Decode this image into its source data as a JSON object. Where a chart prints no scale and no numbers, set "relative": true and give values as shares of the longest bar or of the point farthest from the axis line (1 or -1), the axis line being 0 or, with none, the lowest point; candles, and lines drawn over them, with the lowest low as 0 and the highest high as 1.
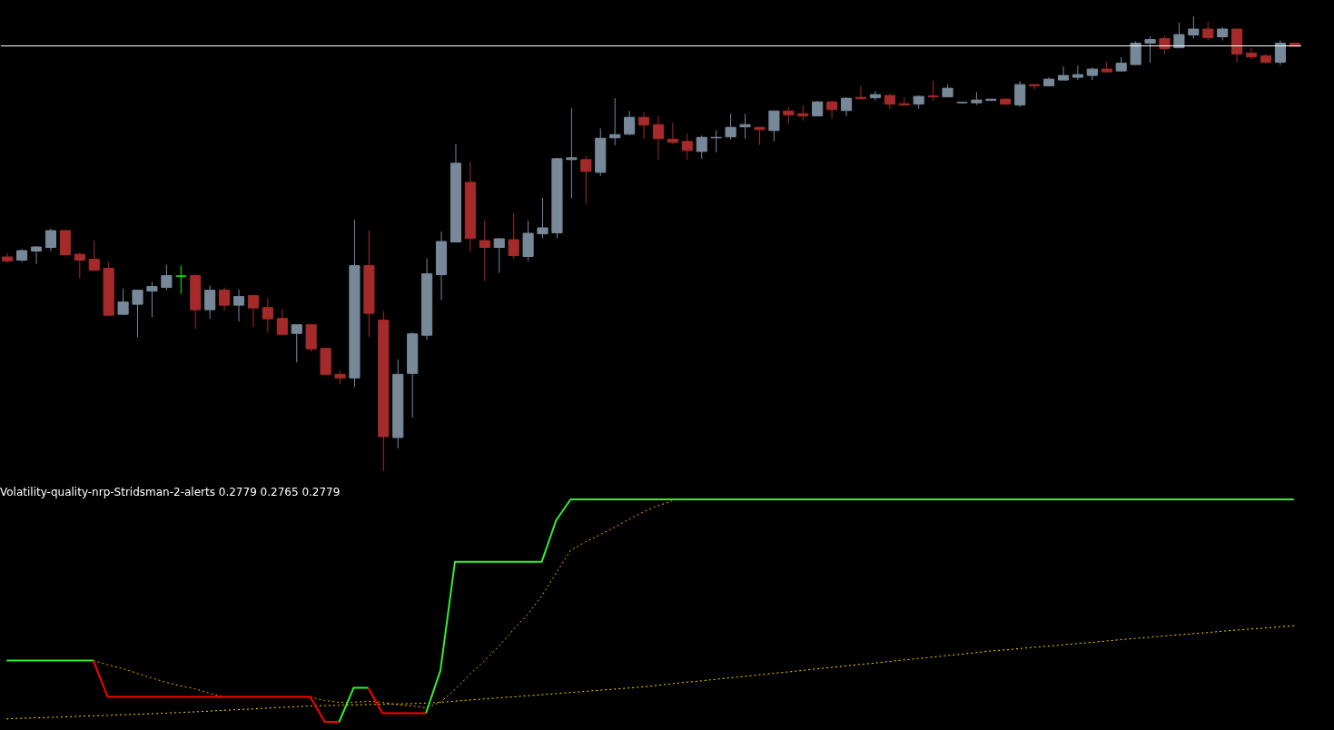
{
  "chart_data": [
    {
      "type": "candlestick",
      "relative": true,
      "tick_labels": false,
      "categories": [
        null,
        null,
        null,
        null,
        null,
        null,
        null,
        null,
        null,
        null,
        null,
        null,
        null,
        null,
        null,
        null,
        null,
        null,
        null,
        null,
        null,
        null,
        null,
        null,
        null,
        null,
        null,
        null,
        null,
        null,
        null,
        null,
        null,
        null,
        null,
        null,
        null,
        null,
        null,
        null,
        null,
        null,
        null,
        null,
        null,
        null,
        null,
        null,
        null,
        null,
        null,
        null,
        null,
        null,
        null,
        null,
        null,
        null,
        null,
        null,
        null,
        null,
        null,
        null,
        null,
        null,
        null,
        null,
        null,
        null,
        null,
        null,
        null,
        null,
        null,
        null,
        null,
        null,
        null,
        null,
        null,
        null,
        null,
        null,
        null,
        null,
        null,
        null,
        null,
        null
      ],
      "ohlc": [
        [
          0.471,
          0.479,
          0.458,
          0.462
        ],
        [
          0.464,
          0.488,
          0.46,
          0.485
        ],
        [
          0.484,
          0.495,
          0.456,
          0.493
        ],
        [
          0.492,
          0.533,
          0.484,
          0.529
        ],
        [
          0.529,
          0.531,
          0.472,
          0.476
        ],
        [
          0.477,
          0.48,
          0.424,
          0.464
        ],
        [
          0.466,
          0.507,
          0.442,
          0.442
        ],
        [
          0.446,
          0.459,
          0.343,
          0.343
        ],
        [
          0.345,
          0.402,
          0.343,
          0.372
        ],
        [
          0.367,
          0.398,
          0.295,
          0.398
        ],
        [
          0.396,
          0.416,
          0.339,
          0.406
        ],
        [
          0.404,
          0.454,
          0.398,
          0.43
        ],
        [
          0.429,
          0.452,
          0.39,
          0.429
        ],
        [
          0.43,
          0.434,
          0.313,
          0.355
        ],
        [
          0.355,
          0.408,
          0.335,
          0.398
        ],
        [
          0.398,
          0.404,
          0.353,
          0.365
        ],
        [
          0.365,
          0.4,
          0.329,
          0.384
        ],
        [
          0.386,
          0.388,
          0.317,
          0.359
        ],
        [
          0.36,
          0.38,
          0.305,
          0.335
        ],
        [
          0.336,
          0.356,
          0.297,
          0.301
        ],
        [
          0.303,
          0.322,
          0.239,
          0.322
        ],
        [
          0.322,
          0.322,
          0.263,
          0.269
        ],
        [
          0.27,
          0.27,
          0.211,
          0.213
        ],
        [
          0.213,
          0.221,
          0.191,
          0.205
        ],
        [
          0.205,
          0.553,
          0.185,
          0.452
        ],
        [
          0.452,
          0.529,
          0.295,
          0.347
        ],
        [
          0.332,
          0.352,
          0,
          0.076
        ],
        [
          0.074,
          0.246,
          0.05,
          0.213
        ],
        [
          0.215,
          0.306,
          0.118,
          0.302
        ],
        [
          0.299,
          0.468,
          0.289,
          0.434
        ],
        [
          0.432,
          0.527,
          0.376,
          0.505
        ],
        [
          0.504,
          0.719,
          0.504,
          0.677
        ],
        [
          0.635,
          0.681,
          0.482,
          0.512
        ],
        [
          0.507,
          0.551,
          0.418,
          0.492
        ],
        [
          0.492,
          0.513,
          0.436,
          0.511
        ],
        [
          0.509,
          0.567,
          0.468,
          0.474
        ],
        [
          0.472,
          0.551,
          0.462,
          0.523
        ],
        [
          0.522,
          0.601,
          0.512,
          0.535
        ],
        [
          0.524,
          0.689,
          0.512,
          0.687
        ],
        [
          0.685,
          0.798,
          0.6,
          0.689
        ],
        [
          0.685,
          0.693,
          0.588,
          0.659
        ],
        [
          0.657,
          0.754,
          0.649,
          0.732
        ],
        [
          0.733,
          0.82,
          0.717,
          0.74
        ],
        [
          0.741,
          0.792,
          0.739,
          0.778
        ],
        [
          0.778,
          0.79,
          0.731,
          0.761
        ],
        [
          0.762,
          0.78,
          0.685,
          0.731
        ],
        [
          0.73,
          0.766,
          0.719,
          0.723
        ],
        [
          0.725,
          0.742,
          0.685,
          0.705
        ],
        [
          0.703,
          0.738,
          0.687,
          0.734
        ],
        [
          0.733,
          0.75,
          0.701,
          0.734
        ],
        [
          0.735,
          0.786,
          0.729,
          0.756
        ],
        [
          0.757,
          0.786,
          0.731,
          0.762
        ],
        [
          0.756,
          0.756,
          0.717,
          0.751
        ],
        [
          0.749,
          0.792,
          0.725,
          0.792
        ],
        [
          0.792,
          0.8,
          0.763,
          0.783
        ],
        [
          0.786,
          0.804,
          0.771,
          0.781
        ],
        [
          0.781,
          0.814,
          0.781,
          0.812
        ],
        [
          0.812,
          0.814,
          0.775,
          0.795
        ],
        [
          0.793,
          0.822,
          0.781,
          0.82
        ],
        [
          0.822,
          0.848,
          0.819,
          0.819
        ],
        [
          0.821,
          0.836,
          0.815,
          0.828
        ],
        [
          0.826,
          0.83,
          0.797,
          0.807
        ],
        [
          0.808,
          0.822,
          0.805,
          0.805
        ],
        [
          0.807,
          0.826,
          0.797,
          0.824
        ],
        [
          0.825,
          0.858,
          0.815,
          0.823
        ],
        [
          0.823,
          0.85,
          0.823,
          0.842
        ],
        [
          0.81,
          0.811,
          0.808,
          0.811
        ],
        [
          0.81,
          0.834,
          0.805,
          0.816
        ],
        [
          0.815,
          0.818,
          0.814,
          0.818
        ],
        [
          0.818,
          0.82,
          0.807,
          0.807
        ],
        [
          0.805,
          0.858,
          0.801,
          0.85
        ],
        [
          0.85,
          0.85,
          0.839,
          0.847
        ],
        [
          0.847,
          0.866,
          0.847,
          0.862
        ],
        [
          0.86,
          0.89,
          0.86,
          0.87
        ],
        [
          0.866,
          0.892,
          0.86,
          0.872
        ],
        [
          0.87,
          0.888,
          0.86,
          0.884
        ],
        [
          0.884,
          0.9,
          0.876,
          0.878
        ],
        [
          0.88,
          0.91,
          0.878,
          0.897
        ],
        [
          0.894,
          0.945,
          0.894,
          0.941
        ],
        [
          0.941,
          0.956,
          0.898,
          0.949
        ],
        [
          0.951,
          0.958,
          0.917,
          0.929
        ],
        [
          0.931,
          0.986,
          0.929,
          0.96
        ],
        [
          0.959,
          1,
          0.951,
          0.972
        ],
        [
          0.972,
          0.988,
          0.947,
          0.953
        ],
        [
          0.955,
          0.976,
          0.947,
          0.972
        ],
        [
          0.972,
          0.972,
          0.899,
          0.917
        ],
        [
          0.919,
          0.93,
          0.905,
          0.911
        ],
        [
          0.913,
          0.917,
          0.896,
          0.899
        ],
        [
          0.899,
          0.947,
          0.893,
          0.941
        ],
        [
          0.941,
          0.941,
          0.934,
          0.934
        ]
      ],
      "colors": [
        "#a52a2a",
        "#778899",
        "#778899",
        "#778899",
        "#a52a2a",
        "#a52a2a",
        "#a52a2a",
        "#a52a2a",
        "#778899",
        "#778899",
        "#778899",
        "#778899",
        "#00ff00",
        "#a52a2a",
        "#778899",
        "#a52a2a",
        "#778899",
        "#a52a2a",
        "#a52a2a",
        "#a52a2a",
        "#778899",
        "#a52a2a",
        "#a52a2a",
        "#a52a2a",
        "#778899",
        "#a52a2a",
        "#a52a2a",
        "#778899",
        "#778899",
        "#778899",
        "#778899",
        "#778899",
        "#a52a2a",
        "#a52a2a",
        "#778899",
        "#a52a2a",
        "#778899",
        "#778899",
        "#778899",
        "#778899",
        "#a52a2a",
        "#778899",
        "#778899",
        "#778899",
        "#a52a2a",
        "#a52a2a",
        "#a52a2a",
        "#a52a2a",
        "#778899",
        "#778899",
        "#778899",
        "#778899",
        "#a52a2a",
        "#778899",
        "#a52a2a",
        "#a52a2a",
        "#778899",
        "#a52a2a",
        "#778899",
        "#a52a2a",
        "#778899",
        "#a52a2a",
        "#a52a2a",
        "#778899",
        "#a52a2a",
        "#778899",
        "#778899",
        "#778899",
        "#778899",
        "#a52a2a",
        "#778899",
        "#a52a2a",
        "#778899",
        "#778899",
        "#778899",
        "#778899",
        "#a52a2a",
        "#778899",
        "#778899",
        "#778899",
        "#a52a2a",
        "#778899",
        "#778899",
        "#a52a2a",
        "#778899",
        "#a52a2a",
        "#a52a2a",
        "#a52a2a",
        "#778899",
        "#a52a2a"
      ],
      "ref_lines": [
        {
          "axis": "y",
          "value": 0.935,
          "color": "#ffffff"
        }
      ]
    },
    {
      "type": "line",
      "relative": true,
      "tick_labels": false,
      "title": "Volatility-quality-nrp-Stridsman-2-alerts 0.2779 0.2765 0.2779",
      "categories": [
        null,
        null,
        null,
        null,
        null,
        null,
        null,
        null,
        null,
        null,
        null,
        null,
        null,
        null,
        null,
        null,
        null,
        null,
        null,
        null,
        null,
        null,
        null,
        null,
        null,
        null,
        null,
        null,
        null,
        null,
        null,
        null,
        null,
        null,
        null,
        null,
        null,
        null,
        null,
        null,
        null,
        null,
        null,
        null,
        null,
        null,
        null,
        null,
        null,
        null,
        null,
        null,
        null,
        null,
        null,
        null,
        null,
        null,
        null,
        null,
        null,
        null,
        null,
        null,
        null,
        null,
        null,
        null,
        null,
        null,
        null,
        null,
        null,
        null,
        null,
        null,
        null,
        null,
        null,
        null,
        null,
        null,
        null,
        null,
        null,
        null,
        null,
        null,
        null,
        null
      ],
      "series": [
        {
          "color": "#ffd700",
          "line_style": "dotted",
          "values": [
            0.013,
            0.016,
            0.018,
            0.02,
            0.022,
            0.025,
            0.027,
            0.029,
            0.032,
            0.034,
            0.036,
            0.039,
            0.042,
            0.045,
            0.048,
            0.052,
            0.055,
            0.058,
            0.061,
            0.065,
            0.068,
            0.071,
            0.073,
            0.074,
            0.076,
            0.078,
            0.079,
            0.081,
            0.082,
            0.084,
            0.088,
            0.093,
            0.098,
            0.103,
            0.108,
            0.112,
            0.117,
            0.122,
            0.127,
            0.132,
            0.137,
            0.142,
            0.147,
            0.152,
            0.157,
            0.164,
            0.171,
            0.178,
            0.184,
            0.191,
            0.198,
            0.204,
            0.211,
            0.218,
            0.224,
            0.231,
            0.238,
            0.244,
            0.251,
            0.258,
            0.264,
            0.271,
            0.278,
            0.284,
            0.291,
            0.298,
            0.304,
            0.311,
            0.318,
            0.323,
            0.329,
            0.335,
            0.34,
            0.346,
            0.352,
            0.357,
            0.363,
            0.369,
            0.375,
            0.38,
            0.386,
            0.391,
            0.396,
            0.401,
            0.407,
            0.412,
            0.417,
            0.422,
            0.427,
            0.432
          ]
        },
        {
          "color": "#ffa500",
          "line_style": "dotted",
          "values": [
            null,
            null,
            null,
            null,
            null,
            null,
            0.276,
            0.256,
            0.24,
            0.219,
            0.198,
            0.178,
            0.162,
            0.149,
            0.129,
            0.112,
            null,
            null,
            null,
            null,
            null,
            0.112,
            0.096,
            0.088,
            0.088,
            0.092,
            0.088,
            0.076,
            0.072,
            0.063,
            0.088,
            0.145,
            0.211,
            0.272,
            0.337,
            0.411,
            0.481,
            0.566,
            0.669,
            0.771,
            0.808,
            0.84,
            0.873,
            0.91,
            0.943,
            0.971,
            0.992,
            null,
            null,
            null,
            null,
            null,
            null,
            null,
            null,
            null,
            null,
            null,
            null,
            null,
            null,
            null,
            null,
            null,
            null,
            null,
            null,
            null,
            null,
            null,
            null,
            null,
            null,
            null,
            null,
            null,
            null,
            null,
            null,
            null,
            null,
            null,
            null,
            null,
            null,
            null,
            null,
            null,
            null,
            null
          ]
        },
        {
          "color": "#ff0000",
          "line_style": "solid",
          "values": [
            null,
            null,
            null,
            null,
            null,
            null,
            0.276,
            0.112,
            0.112,
            0.112,
            0.112,
            0.112,
            0.112,
            0.112,
            0.112,
            0.112,
            0.112,
            0.112,
            0.112,
            0.112,
            0.112,
            0.112,
            0,
            0,
            null,
            0.153,
            0.039,
            0.039,
            0.039,
            0.039,
            null,
            null,
            null,
            null,
            null,
            null,
            null,
            null,
            null,
            null,
            null,
            null,
            null,
            null,
            null,
            null,
            null,
            null,
            null,
            null,
            null,
            null,
            null,
            null,
            null,
            null,
            null,
            null,
            null,
            null,
            null,
            null,
            null,
            null,
            null,
            null,
            null,
            null,
            null,
            null,
            null,
            null,
            null,
            null,
            null,
            null,
            null,
            null,
            null,
            null,
            null,
            null,
            null,
            null,
            null,
            null,
            null,
            null,
            null,
            null
          ]
        },
        {
          "color": "#33ee33",
          "line_style": "solid",
          "values": [
            0.276,
            0.276,
            0.276,
            0.276,
            0.276,
            0.276,
            0.276,
            null,
            null,
            null,
            null,
            null,
            null,
            null,
            null,
            null,
            null,
            null,
            null,
            null,
            null,
            null,
            null,
            0,
            0.153,
            0.153,
            null,
            null,
            null,
            0.039,
            0.231,
            0.719,
            0.719,
            0.719,
            0.719,
            0.719,
            0.719,
            0.719,
            0.906,
            1,
            1,
            1,
            1,
            1,
            1,
            1,
            1,
            1,
            1,
            1,
            1,
            1,
            1,
            1,
            1,
            1,
            1,
            1,
            1,
            1,
            1,
            1,
            1,
            1,
            1,
            1,
            1,
            1,
            1,
            1,
            1,
            1,
            1,
            1,
            1,
            1,
            1,
            1,
            1,
            1,
            1,
            1,
            1,
            1,
            1,
            1,
            1,
            1,
            1,
            1
          ]
        }
      ]
    }
  ]
}
